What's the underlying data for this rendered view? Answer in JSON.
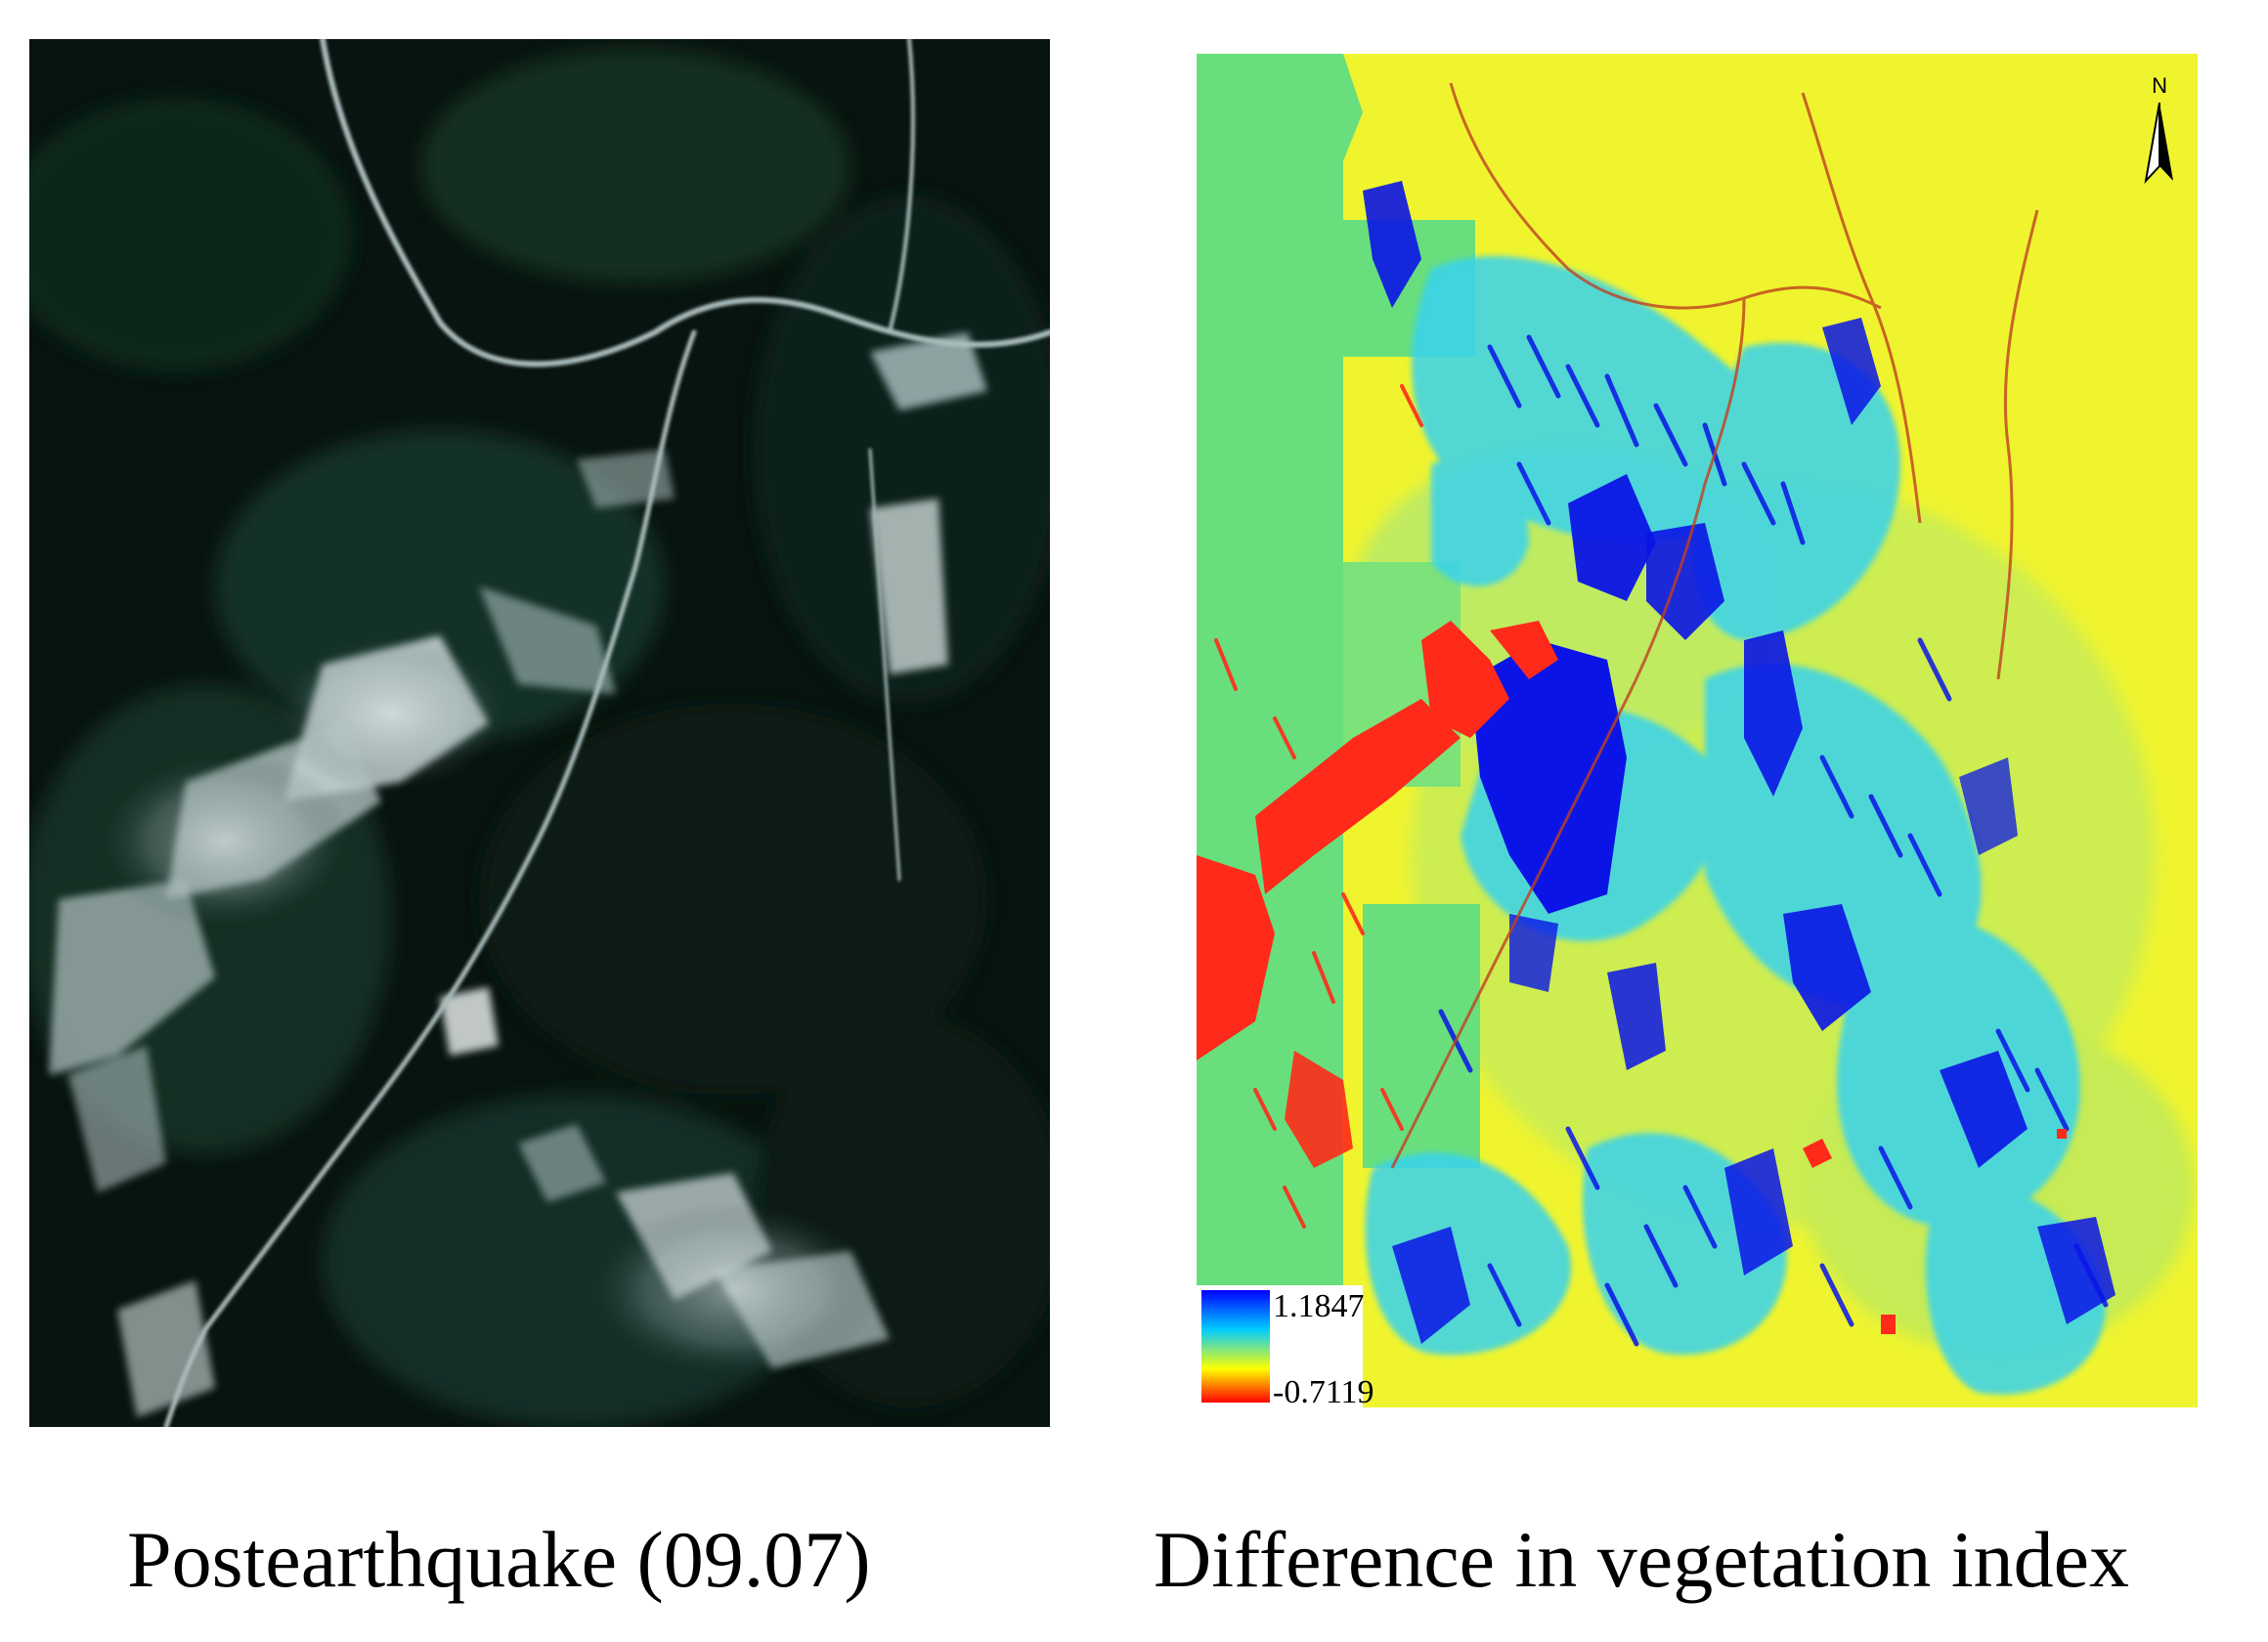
{
  "figure": {
    "left_panel": {
      "caption": "Postearthquake (09.07)",
      "content": "satellite-image"
    },
    "right_panel": {
      "caption": "Difference in vegetation index",
      "content": "vegetation-difference-map",
      "north_arrow_label": "N",
      "legend": {
        "max_label": "1.1847",
        "min_label": "-0.7119",
        "colors": [
          "#0000ff",
          "#00ccff",
          "#ffff00",
          "#ff0000"
        ]
      },
      "class_colors": {
        "high_increase": "#0a14e6",
        "moderate_increase": "#3ad6f0",
        "neutral_green": "#6ae07a",
        "slight_decrease": "#f4f22a",
        "strong_decrease": "#ff2a1a"
      }
    }
  }
}
